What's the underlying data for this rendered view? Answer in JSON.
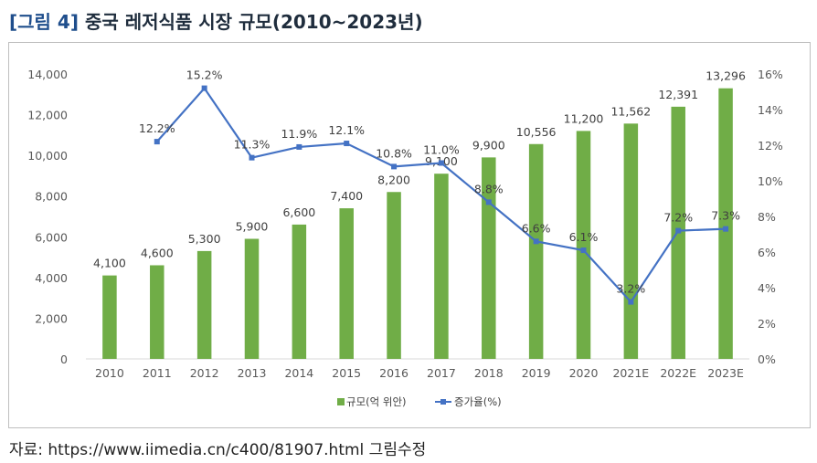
{
  "figure": {
    "tag": "[그림 4]",
    "title": "중국 레저식품 시장 규모(2010~2023년)",
    "source": "자료: https://www.iimedia.cn/c400/81907.html 그림수정"
  },
  "colors": {
    "bar": "#70ad47",
    "line": "#4472c4",
    "axis_text": "#595959",
    "label_text": "#404040",
    "title_tag": "#1f4e8c"
  },
  "chart_data": {
    "type": "bar",
    "categories": [
      "2010",
      "2011",
      "2012",
      "2013",
      "2014",
      "2015",
      "2016",
      "2017",
      "2018",
      "2019",
      "2020",
      "2021E",
      "2022E",
      "2023E"
    ],
    "series": [
      {
        "name": "규모(억 위안)",
        "type": "bar",
        "axis": "left",
        "values": [
          4100,
          4600,
          5300,
          5900,
          6600,
          7400,
          8200,
          9100,
          9900,
          10556,
          11200,
          11562,
          12391,
          13296
        ],
        "labels": [
          "4,100",
          "4,600",
          "5,300",
          "5,900",
          "6,600",
          "7,400",
          "8,200",
          "9,100",
          "9,900",
          "10,556",
          "11,200",
          "11,562",
          "12,391",
          "13,296"
        ]
      },
      {
        "name": "증가율(%)",
        "type": "line",
        "axis": "right",
        "values": [
          null,
          12.2,
          15.2,
          11.3,
          11.9,
          12.1,
          10.8,
          11.0,
          8.8,
          6.6,
          6.1,
          3.2,
          7.2,
          7.3
        ],
        "labels": [
          "",
          "12.2%",
          "15.2%",
          "11.3%",
          "11.9%",
          "12.1%",
          "10.8%",
          "11.0%",
          "8.8%",
          "6.6%",
          "6.1%",
          "3.2%",
          "7.2%",
          "7.3%"
        ]
      }
    ],
    "ylim_left": [
      0,
      14000
    ],
    "yticks_left": [
      "0",
      "2,000",
      "4,000",
      "6,000",
      "8,000",
      "10,000",
      "12,000",
      "14,000"
    ],
    "ylim_right": [
      0,
      16
    ],
    "yticks_right": [
      "0%",
      "2%",
      "4%",
      "6%",
      "8%",
      "10%",
      "12%",
      "14%",
      "16%"
    ],
    "grid": false,
    "legend_position": "bottom"
  }
}
